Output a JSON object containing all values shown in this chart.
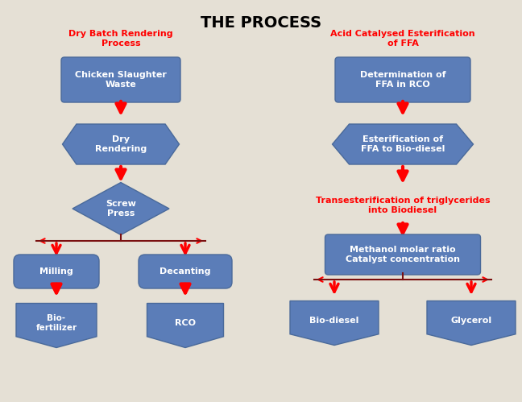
{
  "title": "THE PROCESS",
  "bg_color": "#e5e0d5",
  "box_color": "#5b7db8",
  "box_edge_color": "#4a6a9a",
  "text_color": "white",
  "arrow_color": "red",
  "line_color": "#7a1010",
  "red_label_color": "red",
  "left_section_title": "Dry Batch Rendering\nProcess",
  "right_section_title": "Acid Catalysed Esterification\nof FFA",
  "right_trans_text": "Transesterification of triglycerides\ninto Biodiesel"
}
